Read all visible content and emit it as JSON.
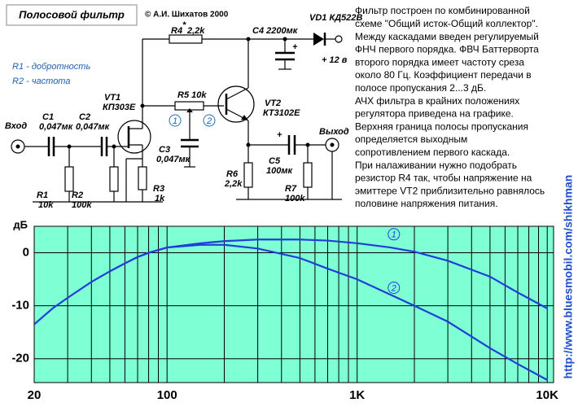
{
  "schematic": {
    "title": "Полосовой фильтр",
    "labels": [
      "© А.И. Шихатов 2000",
      "R4",
      "*",
      "2,2k",
      "C4 2200мк",
      "VD1 КД522В",
      "+ 12 в",
      "R1 - добротность",
      "R2 - частота",
      "R5 10k",
      "VT1",
      "КП303Е",
      "VT2",
      "КТ3102Е",
      "Вход",
      "Выход",
      "C1",
      "0,047мк",
      "C2",
      "0,047мк",
      "C3",
      "0,047мк",
      "C5",
      "100мк",
      "R1",
      "10k",
      "R2",
      "100k",
      "R3",
      "1k",
      "R6",
      "2,2k",
      "R7",
      "100k",
      "1",
      "2",
      "+",
      "+"
    ]
  },
  "description": [
    "Фильтр построен по комбинированной",
    "схеме \"Общий исток-Общий коллектор\".",
    "Между каскадами введен регулируемый",
    "ФНЧ первого порядка. ФВЧ Баттерворта",
    "второго порядка имеет частоту среза",
    "около 80 Гц. Коэффициент передачи в",
    "полосе пропускания 2...3 дБ.",
    "АЧХ фильтра в крайних положениях",
    "регулятора приведена на графике.",
    "Верхняя граница полосы пропускания",
    "определяется выходным",
    "сопротивлением первого каскада.",
    "При налаживании нужно подобрать",
    "резистор R4 так, чтобы напряжение на",
    "эмиттере VT2 приблизительно равнялось",
    "половине напряжения питания."
  ],
  "url": "http://www.bluesmobil.com/shikhman",
  "chart_data": {
    "type": "line",
    "xscale": "log",
    "background": "#7fffd4",
    "grid": true,
    "ylabel": "дБ",
    "xlim": [
      20,
      10800
    ],
    "ylim": [
      -24.5,
      5
    ],
    "xticks": [
      20,
      100,
      {
        "value": 1000,
        "label": "1K"
      },
      {
        "value": 10000,
        "label": "10K"
      }
    ],
    "xgrid": [
      20,
      30,
      40,
      50,
      60,
      70,
      80,
      90,
      100,
      200,
      300,
      400,
      500,
      600,
      700,
      800,
      900,
      1000,
      2000,
      3000,
      4000,
      5000,
      6000,
      7000,
      8000,
      9000,
      10000
    ],
    "yticks": [
      0,
      -10,
      -20
    ],
    "series": [
      {
        "name": "1",
        "color": "#1f3fd8",
        "x": [
          50,
          60,
          70,
          80,
          100,
          150,
          200,
          300,
          500,
          700,
          1000,
          1500,
          2000,
          3000,
          5000,
          7000,
          10000
        ],
        "values": [
          -3.5,
          -2,
          -0.8,
          0,
          1,
          1.8,
          2.2,
          2.5,
          2.5,
          2.3,
          1.8,
          1,
          0.2,
          -1.5,
          -4.5,
          -7.5,
          -10.5
        ]
      },
      {
        "name": "2",
        "color": "#1f3fd8",
        "x": [
          20,
          25,
          30,
          40,
          50,
          60,
          70,
          80,
          100,
          150,
          200,
          300,
          500,
          700,
          1000,
          2000,
          3000,
          5000,
          7000,
          10000
        ],
        "values": [
          -13.5,
          -10.5,
          -8.5,
          -5.5,
          -3.5,
          -2,
          -0.8,
          0,
          1,
          1.5,
          1.5,
          0.8,
          -1,
          -3,
          -5,
          -10,
          -13,
          -18,
          -21,
          -24
        ]
      }
    ],
    "annotations": [
      {
        "text": "1",
        "x": 1560,
        "y": 3.5
      },
      {
        "text": "2",
        "x": 1560,
        "y": -6.6
      }
    ]
  }
}
